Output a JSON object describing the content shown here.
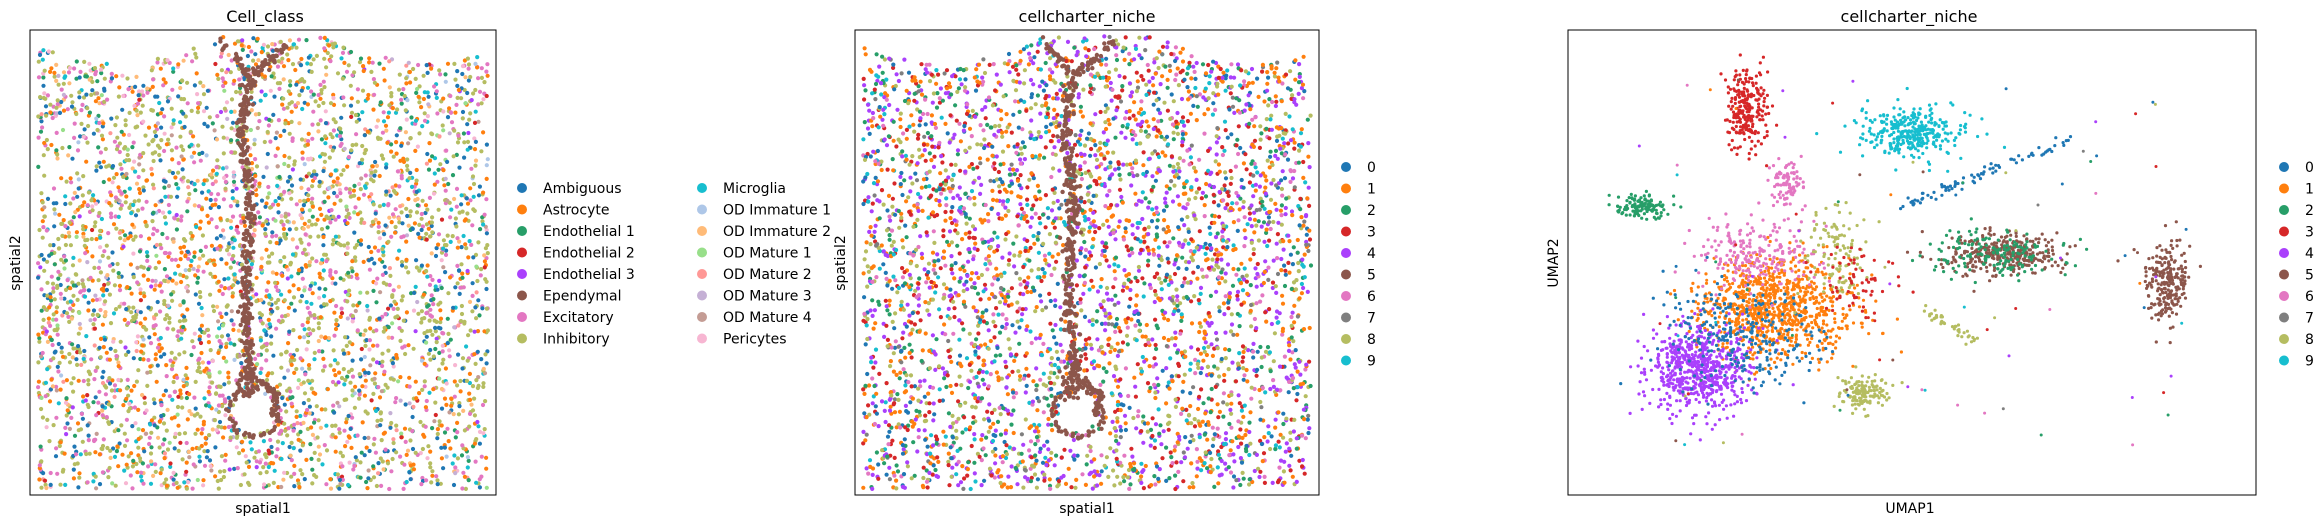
{
  "chart_data": [
    {
      "type": "scatter",
      "title": "Cell_class",
      "xlabel": "spatial1",
      "ylabel": "spatial2",
      "xticks": "none",
      "yticks": "none",
      "grid": false,
      "legend_placement": "right, two columns",
      "categories": [
        "Ambiguous",
        "Astrocyte",
        "Endothelial 1",
        "Endothelial 2",
        "Endothelial 3",
        "Ependymal",
        "Excitatory",
        "Inhibitory",
        "Microglia",
        "OD Immature 1",
        "OD Immature 2",
        "OD Mature 1",
        "OD Mature 2",
        "OD Mature 3",
        "OD Mature 4",
        "Pericytes"
      ],
      "colors": [
        "#1f77b4",
        "#ff7f0e",
        "#279e68",
        "#d62728",
        "#aa40fc",
        "#8c564b",
        "#e377c2",
        "#b5bd61",
        "#17becf",
        "#aec7e8",
        "#ffbb78",
        "#98df8a",
        "#ff9896",
        "#c5b0d5",
        "#c49c94",
        "#f7b6d2"
      ],
      "weights": [
        8,
        12,
        4,
        1,
        1,
        0,
        12,
        22,
        4,
        1,
        3,
        1,
        1,
        1,
        1,
        3
      ]
    },
    {
      "type": "scatter",
      "title": "cellcharter_niche",
      "xlabel": "spatial1",
      "ylabel": "spatial2",
      "xticks": "none",
      "yticks": "none",
      "grid": false,
      "legend_placement": "right",
      "categories": [
        "0",
        "1",
        "2",
        "3",
        "4",
        "5",
        "6",
        "7",
        "8",
        "9"
      ],
      "colors": [
        "#1f77b4",
        "#ff7f0e",
        "#279e68",
        "#d62728",
        "#aa40fc",
        "#8c564b",
        "#e377c2",
        "#7f7f7f",
        "#b5bd61",
        "#17becf"
      ],
      "weights": [
        6,
        14,
        8,
        10,
        14,
        0,
        6,
        2,
        10,
        5
      ]
    },
    {
      "type": "scatter",
      "title": "cellcharter_niche",
      "xlabel": "UMAP1",
      "ylabel": "UMAP2",
      "xticks": "none",
      "yticks": "none",
      "grid": false,
      "legend_placement": "right",
      "categories": [
        "0",
        "1",
        "2",
        "3",
        "4",
        "5",
        "6",
        "7",
        "8",
        "9"
      ],
      "colors": [
        "#1f77b4",
        "#ff7f0e",
        "#279e68",
        "#d62728",
        "#aa40fc",
        "#8c564b",
        "#e377c2",
        "#7f7f7f",
        "#b5bd61",
        "#17becf"
      ],
      "clusters": [
        {
          "category": "1",
          "x": 0.3,
          "y": 0.4,
          "sx": 0.09,
          "sy": 0.09,
          "n": 900
        },
        {
          "category": "4",
          "x": 0.19,
          "y": 0.27,
          "sx": 0.06,
          "sy": 0.08,
          "n": 650
        },
        {
          "category": "0",
          "x": 0.25,
          "y": 0.34,
          "sx": 0.09,
          "sy": 0.09,
          "n": 260
        },
        {
          "category": "6",
          "x": 0.28,
          "y": 0.52,
          "sx": 0.08,
          "sy": 0.07,
          "n": 220
        },
        {
          "category": "8",
          "x": 0.43,
          "y": 0.22,
          "sx": 0.03,
          "sy": 0.03,
          "n": 140
        },
        {
          "category": "8",
          "x": 0.39,
          "y": 0.52,
          "sx": 0.04,
          "sy": 0.08,
          "n": 110
        },
        {
          "category": "3",
          "x": 0.26,
          "y": 0.83,
          "sx": 0.025,
          "sy": 0.07,
          "n": 240
        },
        {
          "category": "6",
          "x": 0.32,
          "y": 0.67,
          "sx": 0.02,
          "sy": 0.04,
          "n": 90
        },
        {
          "category": "9",
          "x": 0.5,
          "y": 0.78,
          "sx": 0.06,
          "sy": 0.05,
          "n": 340
        },
        {
          "category": "2",
          "x": 0.11,
          "y": 0.62,
          "sx": 0.035,
          "sy": 0.02,
          "n": 130
        },
        {
          "category": "5",
          "x": 0.63,
          "y": 0.52,
          "sx": 0.07,
          "sy": 0.035,
          "n": 330
        },
        {
          "category": "2",
          "x": 0.62,
          "y": 0.52,
          "sx": 0.08,
          "sy": 0.04,
          "n": 160
        },
        {
          "category": "5",
          "x": 0.87,
          "y": 0.46,
          "sx": 0.025,
          "sy": 0.07,
          "n": 230
        },
        {
          "category": "3",
          "x": 0.42,
          "y": 0.45,
          "sx": 0.05,
          "sy": 0.07,
          "n": 60
        }
      ],
      "strands": [
        {
          "category": "0",
          "x1": 0.48,
          "y1": 0.62,
          "x2": 0.74,
          "y2": 0.77,
          "n": 80
        },
        {
          "category": "8",
          "x1": 0.52,
          "y1": 0.4,
          "x2": 0.59,
          "y2": 0.33,
          "n": 40
        }
      ]
    }
  ]
}
